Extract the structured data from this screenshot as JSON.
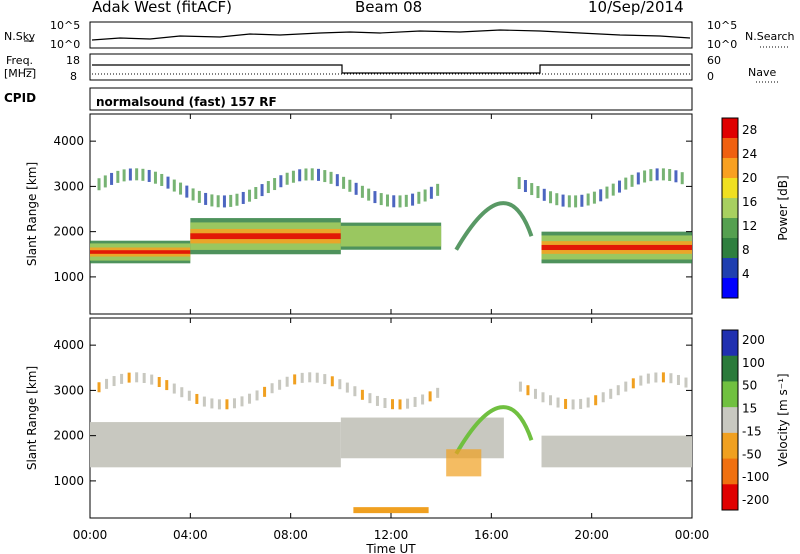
{
  "header": {
    "station": "Adak West (fitACF)",
    "beam": "Beam 08",
    "date": "10/Sep/2014"
  },
  "aux": {
    "nsky_label": "N.Sky",
    "nsearch_label": "N.Search",
    "freq_label": "Freq.",
    "freq_unit": "[MHz]",
    "nave_label": "Nave",
    "cpid_label": "CPID",
    "cpid_value": "normalsound (fast) 157 RF",
    "noise_ticks": [
      "10^5",
      "10^0"
    ],
    "freq_ticks": [
      "18",
      "8"
    ],
    "nave_ticks": [
      "60",
      "0"
    ]
  },
  "colors": {
    "power": [
      "#0000ff",
      "#1f3fb0",
      "#2f7f3f",
      "#55a050",
      "#a8d060",
      "#f0e020",
      "#f8a020",
      "#f06010",
      "#e00000"
    ],
    "velocity": [
      "#2030b0",
      "#2a7a3a",
      "#70c040",
      "#c8c8c0",
      "#f0a020",
      "#f07010",
      "#e00000"
    ]
  },
  "chart_data": [
    {
      "type": "heatmap",
      "title": "",
      "xlabel": "",
      "ylabel": "Slant Range [km]",
      "x_ticks": [
        "00:00",
        "04:00",
        "08:00",
        "12:00",
        "16:00",
        "20:00",
        "00:00"
      ],
      "y_ticks": [
        "1000",
        "2000",
        "3000",
        "4000"
      ],
      "ylim": [
        180,
        4600
      ],
      "colorbar": {
        "label": "Power [dB]",
        "ticks": [
          "4",
          "8",
          "12",
          "16",
          "20",
          "24",
          "28"
        ],
        "range": [
          0,
          30
        ]
      },
      "bands": [
        {
          "start_h": 0.0,
          "end_h": 4.0,
          "range_km": [
            1300,
            1800
          ],
          "peak_db": 28
        },
        {
          "start_h": 4.0,
          "end_h": 10.0,
          "range_km": [
            1500,
            2300
          ],
          "peak_db": 26
        },
        {
          "start_h": 10.0,
          "end_h": 14.0,
          "range_km": [
            1600,
            2200
          ],
          "peak_db": 18
        },
        {
          "start_h": 18.0,
          "end_h": 24.0,
          "range_km": [
            1300,
            2000
          ],
          "peak_db": 27
        }
      ]
    },
    {
      "type": "heatmap",
      "title": "",
      "xlabel": "Time UT",
      "ylabel": "Slant Range [km]",
      "x_ticks": [
        "00:00",
        "04:00",
        "08:00",
        "12:00",
        "16:00",
        "20:00",
        "00:00"
      ],
      "y_ticks": [
        "1000",
        "2000",
        "3000",
        "4000"
      ],
      "ylim": [
        180,
        4600
      ],
      "colorbar": {
        "label": "Velocity [m s⁻¹]",
        "ticks": [
          "200",
          "100",
          "50",
          "15",
          "-15",
          "-50",
          "-100",
          "-200"
        ],
        "range": [
          -250,
          250
        ]
      },
      "bands": [
        {
          "start_h": 0.0,
          "end_h": 10.0,
          "range_km": [
            1300,
            2300
          ],
          "velocity": 0
        },
        {
          "start_h": 10.0,
          "end_h": 16.5,
          "range_km": [
            1500,
            2400
          ],
          "velocity": 0
        },
        {
          "start_h": 18.0,
          "end_h": 24.0,
          "range_km": [
            1300,
            2000
          ],
          "velocity": 0
        }
      ]
    }
  ]
}
